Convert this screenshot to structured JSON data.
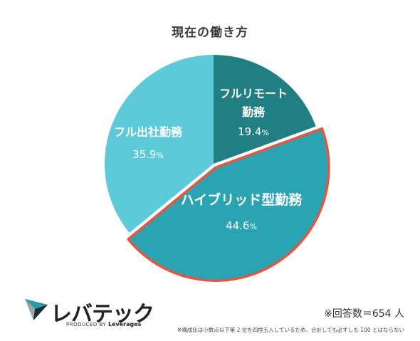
{
  "chart_data": {
    "type": "pie",
    "title": "現在の働き方",
    "start_angle_deg": 0,
    "direction": "clockwise",
    "highlighted": "ハイブリッド型勤務",
    "highlight_color": "#e8553f",
    "slices": [
      {
        "label_lines": [
          "フルリモート",
          "勤務"
        ],
        "label": "フルリモート勤務",
        "value": 19.4,
        "display": "19.4",
        "color": "#217e82"
      },
      {
        "label_lines": [
          "ハイブリッド型勤務"
        ],
        "label": "ハイブリッド型勤務",
        "value": 44.6,
        "display": "44.6",
        "color": "#2aa3b3"
      },
      {
        "label_lines": [
          "フル出社勤務"
        ],
        "label": "フル出社勤務",
        "value": 35.9,
        "display": "35.9",
        "color": "#5ccad8"
      }
    ],
    "unit": "%"
  },
  "brand": {
    "name": "レバテック",
    "tagline_prefix": "PRODUCED BY",
    "tagline_company": "Leverages"
  },
  "notes": {
    "respondents": "※回答数＝654 人",
    "footnote": "※構成比は小数点以下第 2 位を四捨五入しているため、合計しても必ずしも 100 とはならない"
  }
}
